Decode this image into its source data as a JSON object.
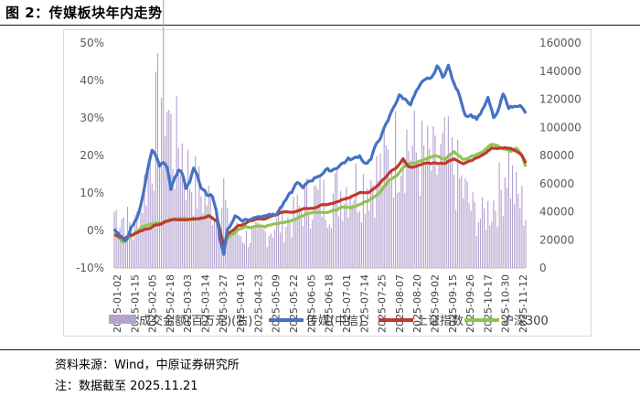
{
  "figure": {
    "title": "图 2：传媒板块年内走势",
    "source": "资料来源：Wind，中原证券研究所",
    "note": "注：数据截至 2025.11.21"
  },
  "chart_data": {
    "type": "bar+line",
    "title": "",
    "left_axis": {
      "ylim": [
        -10,
        50
      ],
      "ticks": [
        "-10%",
        "0%",
        "10%",
        "20%",
        "30%",
        "40%",
        "50%"
      ],
      "unit": "%"
    },
    "right_axis": {
      "ylim": [
        0,
        160000
      ],
      "ticks": [
        "0",
        "20000",
        "40000",
        "60000",
        "80000",
        "100000",
        "120000",
        "140000",
        "160000"
      ]
    },
    "x_tick_labels": [
      "2025-01-02",
      "2025-01-15",
      "2025-02-05",
      "2025-02-18",
      "2025-03-03",
      "2025-03-14",
      "2025-03-27",
      "2025-04-10",
      "2025-04-23",
      "2025-05-09",
      "2025-05-22",
      "2025-06-05",
      "2025-06-18",
      "2025-07-01",
      "2025-07-14",
      "2025-07-25",
      "2025-08-07",
      "2025-08-20",
      "2025-09-02",
      "2025-09-15",
      "2025-09-26",
      "2025-10-17",
      "2025-10-30",
      "2025-11-12"
    ],
    "legend": [
      "成交金额(百万元)(右)",
      "传媒(中信)",
      "上证指数",
      "沪深300"
    ],
    "legend_position": "bottom",
    "grid": false,
    "colors": {
      "volume": "#b5a3cf",
      "media": "#4472c4",
      "sse": "#c0392b",
      "csi300": "#92c350"
    },
    "series": [
      {
        "name": "传媒(中信)",
        "axis": "left",
        "anchors": [
          [
            0,
            0
          ],
          [
            3,
            -2
          ],
          [
            6,
            -3
          ],
          [
            9,
            1
          ],
          [
            12,
            3
          ],
          [
            14,
            7
          ],
          [
            16,
            12
          ],
          [
            18,
            17
          ],
          [
            20,
            21
          ],
          [
            22,
            20
          ],
          [
            24,
            17
          ],
          [
            26,
            18
          ],
          [
            28,
            17
          ],
          [
            30,
            11
          ],
          [
            32,
            14
          ],
          [
            34,
            16
          ],
          [
            36,
            15
          ],
          [
            38,
            11
          ],
          [
            40,
            13
          ],
          [
            42,
            17
          ],
          [
            44,
            15
          ],
          [
            46,
            11
          ],
          [
            48,
            10
          ],
          [
            50,
            9
          ],
          [
            52,
            9
          ],
          [
            54,
            6
          ],
          [
            56,
            -2
          ],
          [
            58,
            -6
          ],
          [
            60,
            0
          ],
          [
            62,
            2
          ],
          [
            64,
            4
          ],
          [
            67,
            3
          ],
          [
            70,
            3
          ],
          [
            73,
            3
          ],
          [
            76,
            4
          ],
          [
            79,
            4
          ],
          [
            82,
            5
          ],
          [
            85,
            4
          ],
          [
            88,
            6
          ],
          [
            91,
            8
          ],
          [
            94,
            10
          ],
          [
            97,
            13
          ],
          [
            100,
            11
          ],
          [
            103,
            13
          ],
          [
            106,
            14
          ],
          [
            109,
            15
          ],
          [
            112,
            16
          ],
          [
            115,
            16
          ],
          [
            118,
            17
          ],
          [
            121,
            18
          ],
          [
            124,
            19
          ],
          [
            127,
            19
          ],
          [
            130,
            20
          ],
          [
            133,
            18
          ],
          [
            136,
            19
          ],
          [
            139,
            23
          ],
          [
            142,
            26
          ],
          [
            145,
            29
          ],
          [
            148,
            33
          ],
          [
            151,
            36
          ],
          [
            154,
            35
          ],
          [
            157,
            34
          ],
          [
            160,
            37
          ],
          [
            163,
            39
          ],
          [
            166,
            40
          ],
          [
            169,
            41
          ],
          [
            171,
            44
          ],
          [
            174,
            41
          ],
          [
            177,
            44
          ],
          [
            180,
            39
          ],
          [
            183,
            36
          ],
          [
            186,
            31
          ],
          [
            189,
            31
          ],
          [
            192,
            30
          ],
          [
            195,
            32
          ],
          [
            198,
            35
          ],
          [
            201,
            30
          ],
          [
            203,
            31
          ],
          [
            206,
            36
          ],
          [
            209,
            33
          ],
          [
            212,
            33
          ],
          [
            215,
            34
          ],
          [
            218,
            31
          ]
        ]
      },
      {
        "name": "上证指数",
        "axis": "left",
        "anchors": [
          [
            0,
            -1
          ],
          [
            5,
            -2
          ],
          [
            10,
            -1
          ],
          [
            15,
            0
          ],
          [
            20,
            1
          ],
          [
            25,
            2
          ],
          [
            30,
            3
          ],
          [
            35,
            3
          ],
          [
            40,
            3
          ],
          [
            45,
            3
          ],
          [
            50,
            4
          ],
          [
            55,
            2
          ],
          [
            58,
            -4
          ],
          [
            60,
            -1
          ],
          [
            65,
            1
          ],
          [
            70,
            2
          ],
          [
            75,
            3
          ],
          [
            80,
            3
          ],
          [
            85,
            4
          ],
          [
            90,
            5
          ],
          [
            95,
            5
          ],
          [
            100,
            6
          ],
          [
            105,
            6
          ],
          [
            110,
            7
          ],
          [
            115,
            7
          ],
          [
            120,
            8
          ],
          [
            125,
            9
          ],
          [
            130,
            10
          ],
          [
            135,
            10
          ],
          [
            140,
            12
          ],
          [
            145,
            15
          ],
          [
            150,
            17
          ],
          [
            153,
            19
          ],
          [
            156,
            17
          ],
          [
            160,
            17
          ],
          [
            165,
            18
          ],
          [
            170,
            18
          ],
          [
            175,
            18
          ],
          [
            180,
            19
          ],
          [
            185,
            18
          ],
          [
            190,
            19
          ],
          [
            195,
            20
          ],
          [
            200,
            22
          ],
          [
            205,
            22
          ],
          [
            210,
            22
          ],
          [
            213,
            21
          ],
          [
            216,
            20
          ],
          [
            218,
            18
          ]
        ]
      },
      {
        "name": "沪深300",
        "axis": "left",
        "anchors": [
          [
            0,
            -1
          ],
          [
            5,
            -3
          ],
          [
            10,
            -1
          ],
          [
            15,
            1
          ],
          [
            20,
            2
          ],
          [
            25,
            2
          ],
          [
            30,
            3
          ],
          [
            35,
            3
          ],
          [
            40,
            3
          ],
          [
            45,
            3
          ],
          [
            50,
            4
          ],
          [
            55,
            2
          ],
          [
            58,
            -5
          ],
          [
            60,
            -2
          ],
          [
            65,
            0
          ],
          [
            70,
            1
          ],
          [
            75,
            1
          ],
          [
            80,
            1
          ],
          [
            85,
            2
          ],
          [
            90,
            2
          ],
          [
            95,
            3
          ],
          [
            100,
            4
          ],
          [
            105,
            5
          ],
          [
            110,
            5
          ],
          [
            115,
            5
          ],
          [
            120,
            6
          ],
          [
            125,
            6
          ],
          [
            130,
            7
          ],
          [
            135,
            8
          ],
          [
            140,
            10
          ],
          [
            145,
            13
          ],
          [
            150,
            15
          ],
          [
            153,
            17
          ],
          [
            156,
            18
          ],
          [
            160,
            18
          ],
          [
            165,
            19
          ],
          [
            170,
            20
          ],
          [
            175,
            19
          ],
          [
            180,
            21
          ],
          [
            185,
            19
          ],
          [
            190,
            20
          ],
          [
            195,
            21
          ],
          [
            200,
            23
          ],
          [
            205,
            22
          ],
          [
            210,
            21
          ],
          [
            213,
            22
          ],
          [
            216,
            20
          ],
          [
            218,
            17
          ]
        ]
      },
      {
        "name": "成交金额(百万元)(右)",
        "axis": "right",
        "anchors": [
          [
            0,
            40000
          ],
          [
            6,
            35000
          ],
          [
            10,
            25000
          ],
          [
            14,
            45000
          ],
          [
            18,
            70000
          ],
          [
            22,
            100000
          ],
          [
            24,
            115000
          ],
          [
            26,
            140000
          ],
          [
            28,
            120000
          ],
          [
            30,
            95000
          ],
          [
            32,
            80000
          ],
          [
            34,
            90000
          ],
          [
            36,
            85000
          ],
          [
            38,
            70000
          ],
          [
            40,
            65000
          ],
          [
            44,
            55000
          ],
          [
            48,
            50000
          ],
          [
            52,
            45000
          ],
          [
            56,
            38000
          ],
          [
            58,
            55000
          ],
          [
            60,
            30000
          ],
          [
            65,
            25000
          ],
          [
            70,
            22000
          ],
          [
            75,
            23000
          ],
          [
            80,
            25000
          ],
          [
            85,
            30000
          ],
          [
            90,
            33000
          ],
          [
            95,
            35000
          ],
          [
            100,
            45000
          ],
          [
            105,
            50000
          ],
          [
            110,
            48000
          ],
          [
            115,
            50000
          ],
          [
            120,
            55000
          ],
          [
            125,
            60000
          ],
          [
            130,
            58000
          ],
          [
            135,
            63000
          ],
          [
            140,
            65000
          ],
          [
            145,
            75000
          ],
          [
            150,
            85000
          ],
          [
            153,
            95000
          ],
          [
            156,
            88000
          ],
          [
            160,
            80000
          ],
          [
            165,
            75000
          ],
          [
            170,
            70000
          ],
          [
            175,
            78000
          ],
          [
            180,
            70000
          ],
          [
            185,
            55000
          ],
          [
            190,
            40000
          ],
          [
            195,
            35000
          ],
          [
            200,
            45000
          ],
          [
            205,
            55000
          ],
          [
            208,
            80000
          ],
          [
            210,
            65000
          ],
          [
            213,
            50000
          ],
          [
            216,
            45000
          ],
          [
            218,
            40000
          ]
        ]
      }
    ]
  }
}
